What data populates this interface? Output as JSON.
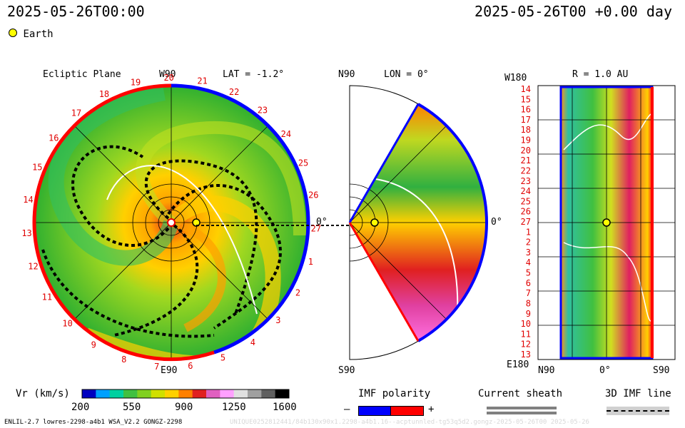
{
  "header": {
    "left_time": "2025-05-26T00:00",
    "right_time": "2025-05-26T00 +0.00 day"
  },
  "legend": {
    "earth_label": "Earth"
  },
  "ecliptic": {
    "title": "Ecliptic Plane",
    "top_label": "W90",
    "lat_label": "LAT = -1.2°",
    "bottom_label": "E90",
    "right_label": "0°",
    "ticks": [
      "7",
      "6",
      "5",
      "4",
      "3",
      "2",
      "1",
      "27",
      "26",
      "25",
      "24",
      "23",
      "22",
      "21",
      "20",
      "19",
      "18",
      "17",
      "16",
      "15",
      "14",
      "13",
      "12",
      "11",
      "10",
      "9",
      "8"
    ]
  },
  "meridional": {
    "top_label": "N90",
    "lon_label": "LON = 0°",
    "bottom_label": "S90",
    "right_label": "0°"
  },
  "rmap": {
    "top_left": "W180",
    "r_label": "R = 1.0 AU",
    "bottom_left": "E180",
    "x_labels": [
      "N90",
      "0°",
      "S90"
    ],
    "y_ticks": [
      "14",
      "15",
      "16",
      "17",
      "18",
      "19",
      "20",
      "21",
      "22",
      "23",
      "24",
      "25",
      "26",
      "27",
      "1",
      "2",
      "3",
      "4",
      "5",
      "6",
      "7",
      "8",
      "9",
      "10",
      "11",
      "12",
      "13"
    ]
  },
  "colorbar": {
    "title": "Vr (km/s)",
    "ticks": [
      "200",
      "550",
      "900",
      "1250",
      "1600"
    ],
    "colors": [
      "#0000c0",
      "#00a0ff",
      "#00d0a0",
      "#40c040",
      "#80d020",
      "#d0e000",
      "#ffd000",
      "#ff8000",
      "#e02020",
      "#e060c0",
      "#ffa0ff",
      "#e0e0e0",
      "#a0a0a0",
      "#606060",
      "#000000"
    ]
  },
  "imf": {
    "title": "IMF polarity",
    "minus": "–",
    "plus": "+",
    "neg_color": "#0000ff",
    "pos_color": "#ff0000"
  },
  "sheath": {
    "title": "Current sheath"
  },
  "imf_line": {
    "title": "3D IMF line"
  },
  "footer": {
    "left": "ENLIL-2.7 lowres-2298-a4b1 WSA_V2.2 GONGZ-2298",
    "right": "UNIQUE0252812441/84b130x90x1.2298-a4b1.16--acptunnled-tg53q5d2.gongz-2025-05-26T00 2025-05-26"
  }
}
